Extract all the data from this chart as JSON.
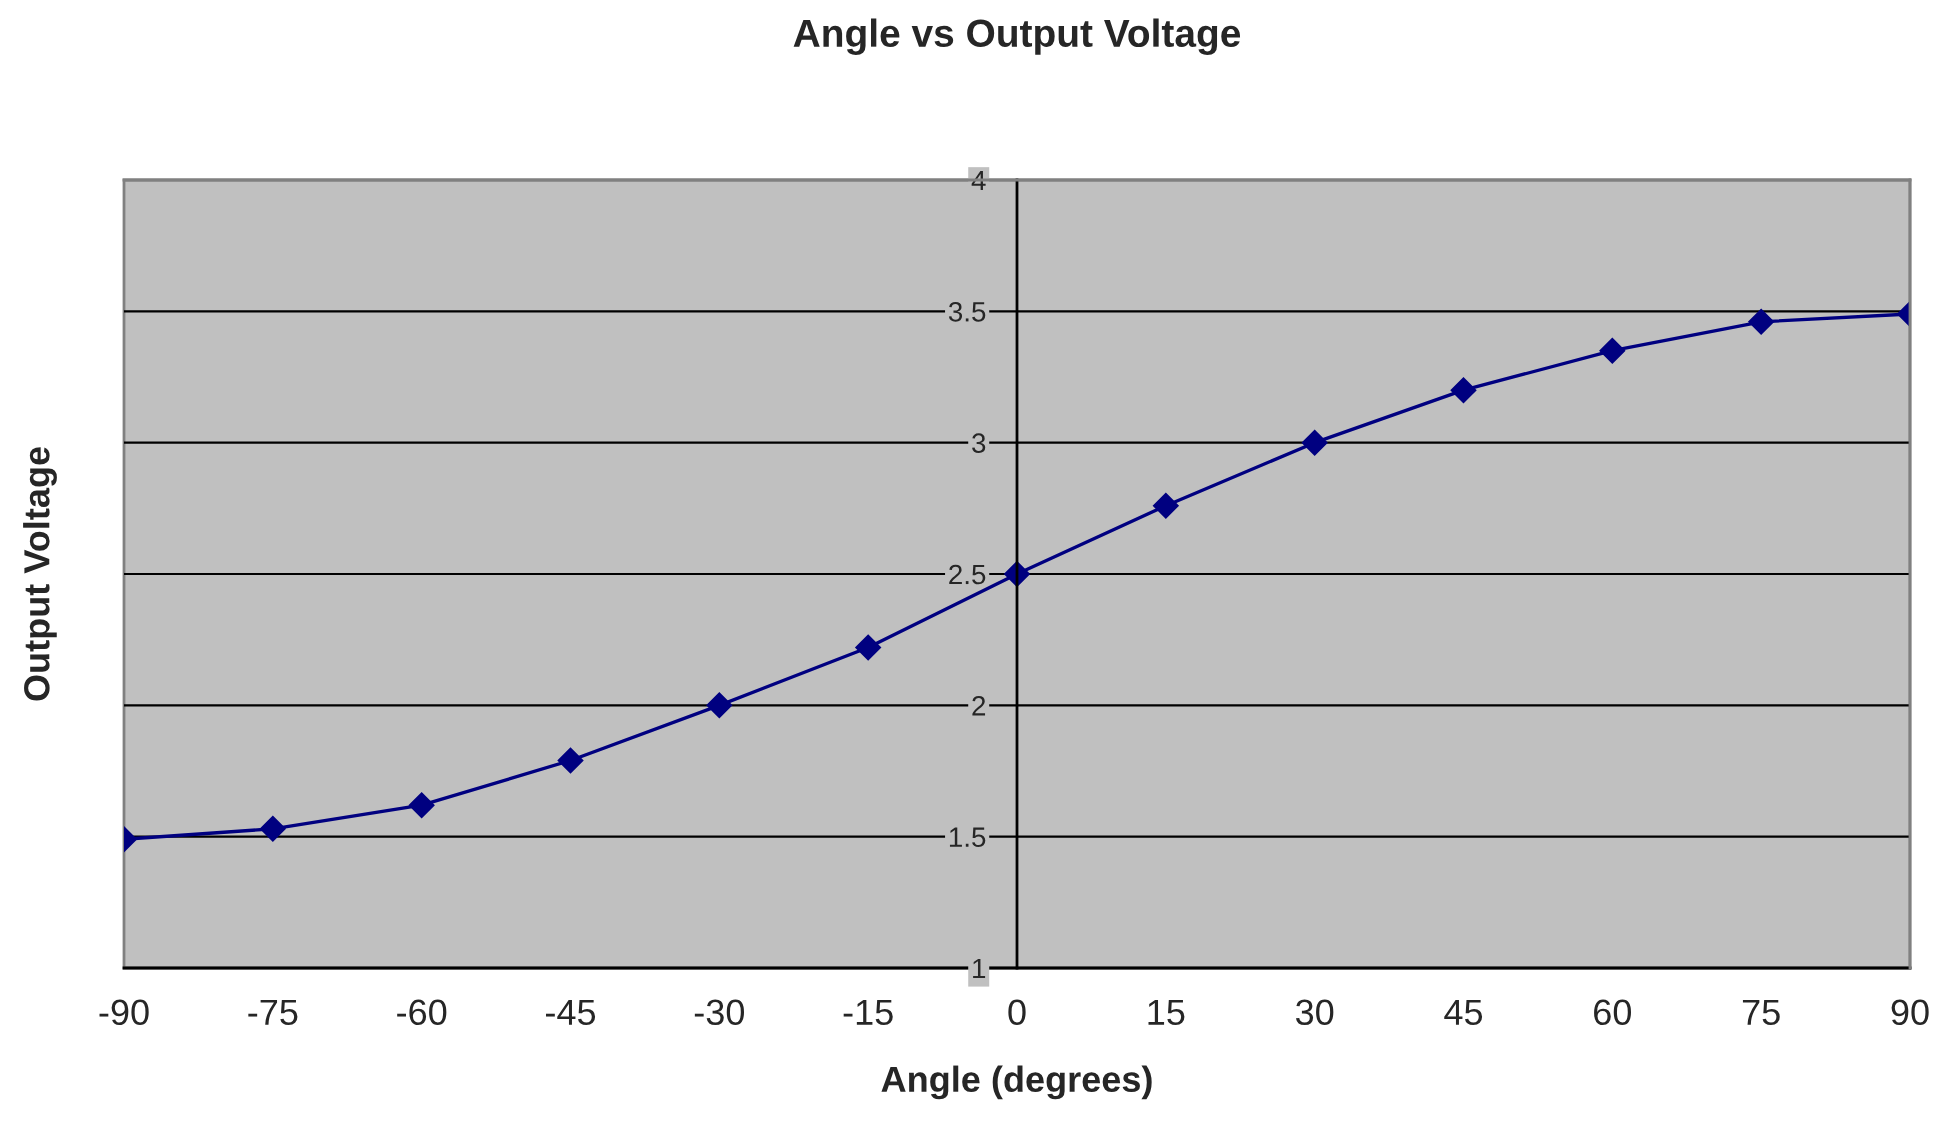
{
  "chart_data": {
    "type": "line",
    "title": "Angle vs Output Voltage",
    "xlabel": "Angle (degrees)",
    "ylabel": "Output Voltage",
    "x": [
      -90,
      -75,
      -60,
      -45,
      -30,
      -15,
      0,
      15,
      30,
      45,
      60,
      75,
      90
    ],
    "series": [
      {
        "color": "#000080",
        "values": [
          1.49,
          1.53,
          1.62,
          1.79,
          2.0,
          2.22,
          2.5,
          2.76,
          3.0,
          3.2,
          3.35,
          3.46,
          3.49
        ]
      }
    ],
    "xlim": [
      -90,
      90
    ],
    "xticks": [
      -90,
      -75,
      -60,
      -45,
      -30,
      -15,
      0,
      15,
      30,
      45,
      60,
      75,
      90
    ],
    "ylim": [
      1,
      4
    ],
    "yticks": [
      1,
      1.5,
      2,
      2.5,
      3,
      3.5,
      4
    ],
    "grid": "y",
    "marker": "diamond",
    "line_style": "solid",
    "legend": false
  }
}
